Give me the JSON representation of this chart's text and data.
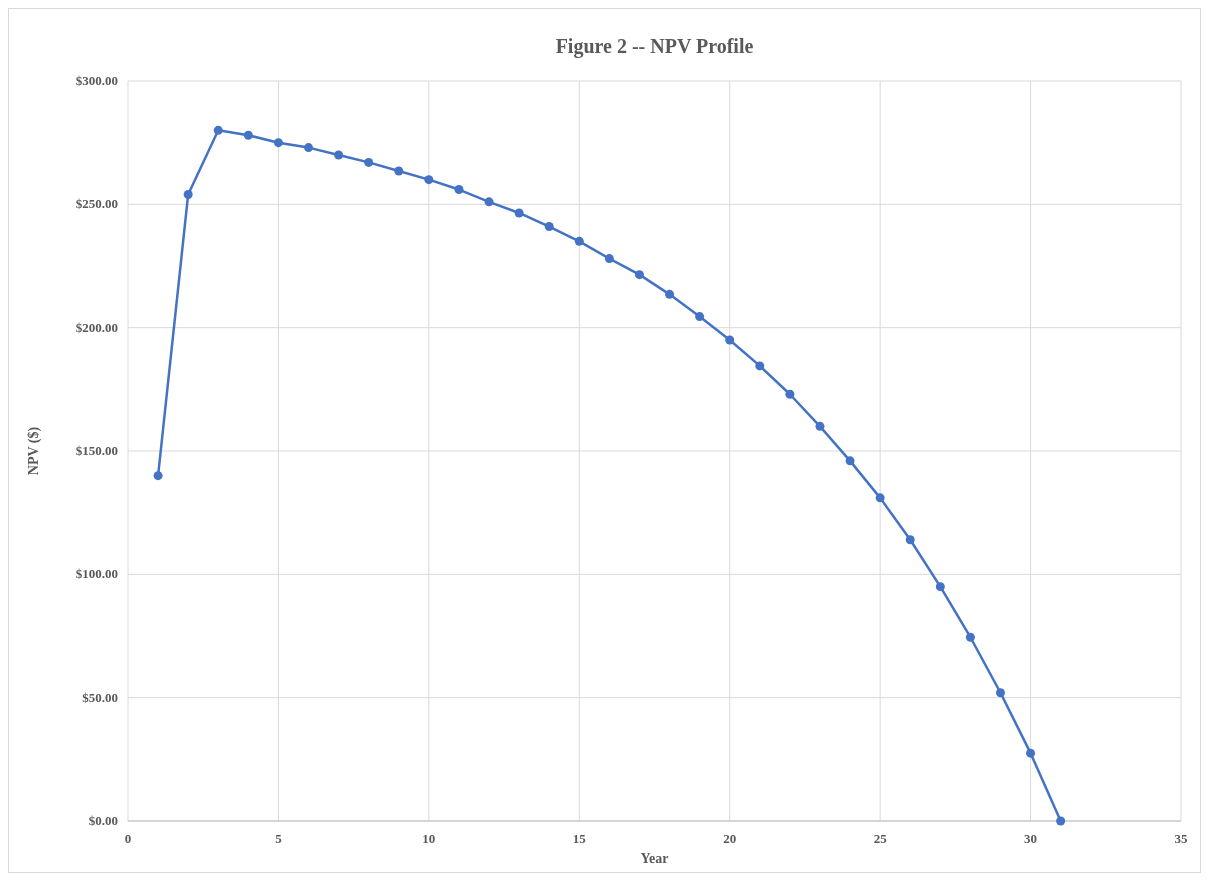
{
  "chart_data": {
    "type": "line",
    "title": "Figure 2 -- NPV Profile",
    "xlabel": "Year",
    "ylabel": "NPV ($)",
    "x": [
      1,
      2,
      3,
      4,
      5,
      6,
      7,
      8,
      9,
      10,
      11,
      12,
      13,
      14,
      15,
      16,
      17,
      18,
      19,
      20,
      21,
      22,
      23,
      24,
      25,
      26,
      27,
      28,
      29,
      30,
      31
    ],
    "series": [
      {
        "color": "#4472c4",
        "values": [
          140,
          254,
          280,
          278,
          275,
          273,
          270,
          267,
          263.5,
          260,
          256,
          251,
          246.5,
          241,
          235,
          228,
          221.5,
          213.5,
          204.5,
          195,
          184.5,
          173,
          160,
          146,
          131,
          114,
          95,
          74.5,
          52,
          27.5,
          0
        ]
      }
    ],
    "xlim": [
      0,
      35
    ],
    "xticks": [
      0,
      5,
      10,
      15,
      20,
      25,
      30,
      35
    ],
    "ylim": [
      0,
      300
    ],
    "yticks": [
      {
        "value": 0,
        "label": "$0.00"
      },
      {
        "value": 50,
        "label": "$50.00"
      },
      {
        "value": 100,
        "label": "$100.00"
      },
      {
        "value": 150,
        "label": "$150.00"
      },
      {
        "value": 200,
        "label": "$200.00"
      },
      {
        "value": 250,
        "label": "$250.00"
      },
      {
        "value": 300,
        "label": "$300.00"
      }
    ],
    "grid": true,
    "marker": "circle",
    "line_style": "solid"
  }
}
